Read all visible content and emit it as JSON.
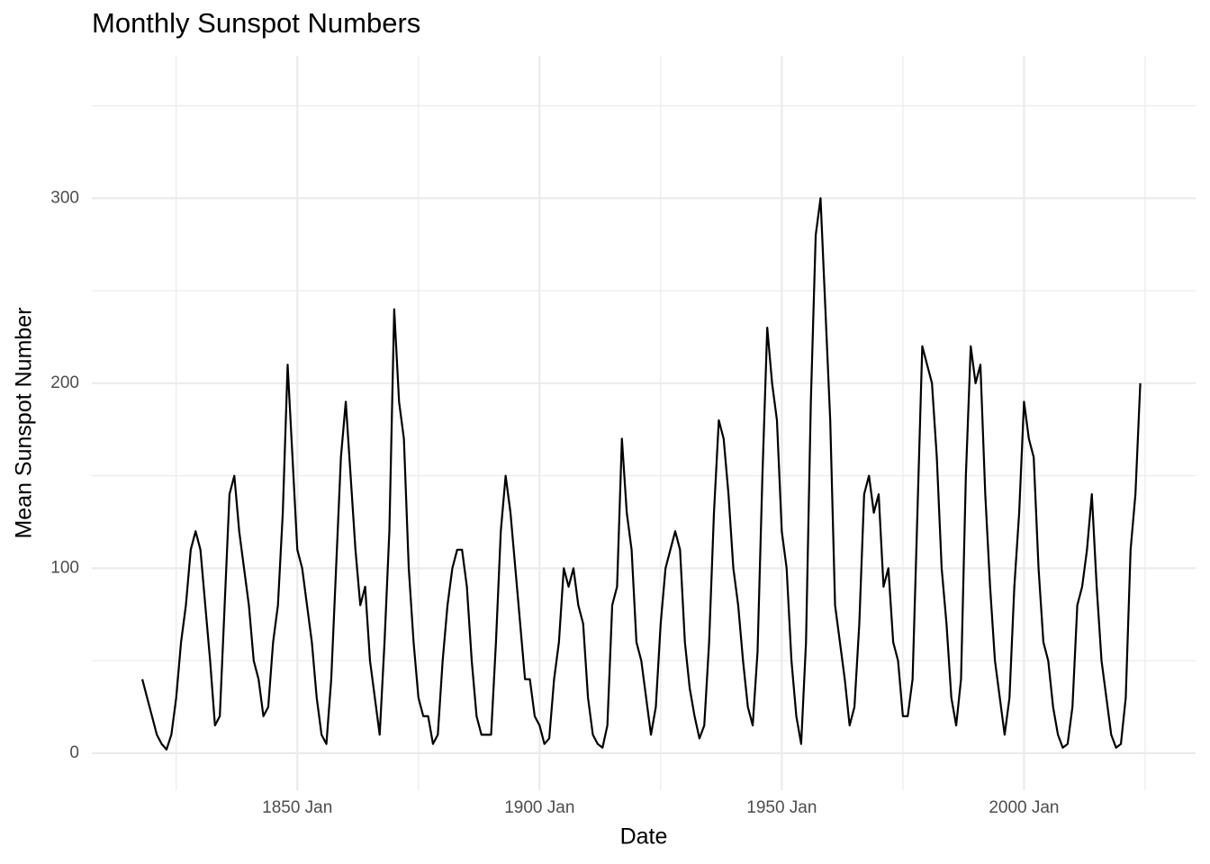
{
  "chart_data": {
    "type": "line",
    "title": "Monthly Sunspot Numbers",
    "x_label": "Date",
    "y_label": "Mean Sunspot Number",
    "x": [
      "1818-01",
      "1819-01",
      "1820-01",
      "1821-01",
      "1822-01",
      "1823-01",
      "1824-01",
      "1825-01",
      "1826-01",
      "1827-01",
      "1828-01",
      "1829-01",
      "1830-01",
      "1831-01",
      "1832-01",
      "1833-01",
      "1834-01",
      "1835-01",
      "1836-01",
      "1837-01",
      "1838-01",
      "1839-01",
      "1840-01",
      "1841-01",
      "1842-01",
      "1843-01",
      "1844-01",
      "1845-01",
      "1846-01",
      "1847-01",
      "1848-01",
      "1849-01",
      "1850-01",
      "1851-01",
      "1852-01",
      "1853-01",
      "1854-01",
      "1855-01",
      "1856-01",
      "1857-01",
      "1858-01",
      "1859-01",
      "1860-01",
      "1861-01",
      "1862-01",
      "1863-01",
      "1864-01",
      "1865-01",
      "1866-01",
      "1867-01",
      "1868-01",
      "1869-01",
      "1870-01",
      "1871-01",
      "1872-01",
      "1873-01",
      "1874-01",
      "1875-01",
      "1876-01",
      "1877-01",
      "1878-01",
      "1879-01",
      "1880-01",
      "1881-01",
      "1882-01",
      "1883-01",
      "1884-01",
      "1885-01",
      "1886-01",
      "1887-01",
      "1888-01",
      "1889-01",
      "1890-01",
      "1891-01",
      "1892-01",
      "1893-01",
      "1894-01",
      "1895-01",
      "1896-01",
      "1897-01",
      "1898-01",
      "1899-01",
      "1900-01",
      "1901-01",
      "1902-01",
      "1903-01",
      "1904-01",
      "1905-01",
      "1906-01",
      "1907-01",
      "1908-01",
      "1909-01",
      "1910-01",
      "1911-01",
      "1912-01",
      "1913-01",
      "1914-01",
      "1915-01",
      "1916-01",
      "1917-01",
      "1918-01",
      "1919-01",
      "1920-01",
      "1921-01",
      "1922-01",
      "1923-01",
      "1924-01",
      "1925-01",
      "1926-01",
      "1927-01",
      "1928-01",
      "1929-01",
      "1930-01",
      "1931-01",
      "1932-01",
      "1933-01",
      "1934-01",
      "1935-01",
      "1936-01",
      "1937-01",
      "1938-01",
      "1939-01",
      "1940-01",
      "1941-01",
      "1942-01",
      "1943-01",
      "1944-01",
      "1945-01",
      "1946-01",
      "1947-01",
      "1948-01",
      "1949-01",
      "1950-01",
      "1951-01",
      "1952-01",
      "1953-01",
      "1954-01",
      "1955-01",
      "1956-01",
      "1957-01",
      "1958-01",
      "1959-01",
      "1960-01",
      "1961-01",
      "1962-01",
      "1963-01",
      "1964-01",
      "1965-01",
      "1966-01",
      "1967-01",
      "1968-01",
      "1969-01",
      "1970-01",
      "1971-01",
      "1972-01",
      "1973-01",
      "1974-01",
      "1975-01",
      "1976-01",
      "1977-01",
      "1978-01",
      "1979-01",
      "1980-01",
      "1981-01",
      "1982-01",
      "1983-01",
      "1984-01",
      "1985-01",
      "1986-01",
      "1987-01",
      "1988-01",
      "1989-01",
      "1990-01",
      "1991-01",
      "1992-01",
      "1993-01",
      "1994-01",
      "1995-01",
      "1996-01",
      "1997-01",
      "1998-01",
      "1999-01",
      "2000-01",
      "2001-01",
      "2002-01",
      "2003-01",
      "2004-01",
      "2005-01",
      "2006-01",
      "2007-01",
      "2008-01",
      "2009-01",
      "2010-01",
      "2011-01",
      "2012-01",
      "2013-01",
      "2014-01",
      "2015-01",
      "2016-01",
      "2017-01",
      "2018-01",
      "2019-01",
      "2020-01",
      "2021-01",
      "2022-01",
      "2023-01",
      "2024-01"
    ],
    "series": [
      {
        "name": "Mean Sunspot Number",
        "color": "#000000",
        "values": [
          40,
          30,
          20,
          10,
          5,
          2,
          10,
          30,
          60,
          80,
          110,
          120,
          110,
          80,
          50,
          15,
          20,
          80,
          140,
          150,
          120,
          100,
          80,
          50,
          40,
          20,
          25,
          60,
          80,
          130,
          210,
          160,
          110,
          100,
          80,
          60,
          30,
          10,
          5,
          40,
          100,
          160,
          190,
          150,
          110,
          80,
          90,
          50,
          30,
          10,
          60,
          120,
          240,
          190,
          170,
          100,
          60,
          30,
          20,
          20,
          5,
          10,
          50,
          80,
          100,
          110,
          110,
          90,
          50,
          20,
          10,
          10,
          10,
          60,
          120,
          150,
          130,
          100,
          70,
          40,
          40,
          20,
          15,
          5,
          8,
          40,
          60,
          100,
          90,
          100,
          80,
          70,
          30,
          10,
          5,
          3,
          15,
          80,
          90,
          170,
          130,
          110,
          60,
          50,
          30,
          10,
          25,
          70,
          100,
          110,
          120,
          110,
          60,
          35,
          20,
          8,
          15,
          60,
          130,
          180,
          170,
          140,
          100,
          80,
          50,
          25,
          15,
          55,
          150,
          230,
          200,
          180,
          120,
          100,
          50,
          20,
          5,
          60,
          190,
          280,
          300,
          240,
          180,
          80,
          60,
          40,
          15,
          25,
          70,
          140,
          150,
          130,
          140,
          90,
          100,
          60,
          50,
          20,
          20,
          40,
          130,
          220,
          210,
          200,
          160,
          100,
          70,
          30,
          15,
          40,
          150,
          220,
          200,
          210,
          140,
          90,
          50,
          30,
          10,
          30,
          90,
          130,
          190,
          170,
          160,
          100,
          60,
          50,
          25,
          10,
          3,
          5,
          25,
          80,
          90,
          110,
          140,
          90,
          50,
          30,
          10,
          3,
          5,
          30,
          110,
          140,
          200
        ]
      }
    ],
    "xlim": [
      "1807-08",
      "2035-06"
    ],
    "xticks": [
      {
        "value": "1850-01",
        "label": "1850 Jan"
      },
      {
        "value": "1900-01",
        "label": "1900 Jan"
      },
      {
        "value": "1950-01",
        "label": "1950 Jan"
      },
      {
        "value": "2000-01",
        "label": "2000 Jan"
      }
    ],
    "ylim": [
      -20,
      377
    ],
    "yticks": [
      0,
      100,
      200,
      300
    ],
    "grid": true
  }
}
